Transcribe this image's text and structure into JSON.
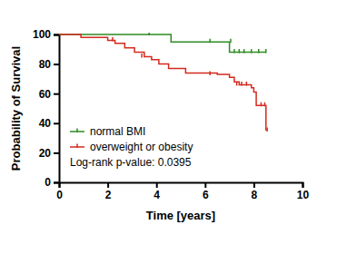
{
  "chart_data": {
    "type": "line",
    "x_label": "Time [years]",
    "y_label": "Probability of Survival",
    "annotation": "Log-rank p-value: 0.0395",
    "xlim": [
      0,
      10
    ],
    "xticks": [
      0,
      2,
      4,
      6,
      8,
      10
    ],
    "ylim": [
      0,
      100
    ],
    "yticks": [
      0,
      20,
      40,
      60,
      80,
      100
    ],
    "legend": "lower left",
    "line_style": "step",
    "series": [
      {
        "name": "normal BMI",
        "color": "#2e8b22",
        "marker": "censor-tick",
        "x": [
          0,
          4.6,
          7.0,
          8.5
        ],
        "values": [
          100,
          95,
          88,
          88
        ],
        "censor": {
          "x": [
            3.7,
            6.2,
            7.05,
            7.2,
            7.4,
            7.6,
            7.9,
            8.2,
            8.5
          ],
          "values": [
            100,
            95,
            95,
            88,
            88,
            88,
            88,
            88,
            88
          ]
        }
      },
      {
        "name": "overweight or obesity",
        "color": "#d42a1e",
        "marker": "censor-tick",
        "x": [
          0,
          0.9,
          2.0,
          2.3,
          2.7,
          3.1,
          3.5,
          3.8,
          4.1,
          4.5,
          5.2,
          6.5,
          7.0,
          7.2,
          7.4,
          7.9,
          8.0,
          8.1,
          8.5
        ],
        "values": [
          100,
          98,
          96,
          94,
          91,
          88,
          85,
          83,
          80,
          77,
          74,
          73,
          71,
          68,
          66,
          64,
          61,
          52,
          35
        ],
        "censor": {
          "x": [
            2.2,
            3.4,
            6.2,
            7.3,
            7.5,
            7.7,
            8.3,
            8.45,
            8.55
          ],
          "values": [
            96,
            85,
            73,
            66,
            66,
            66,
            52,
            52,
            35
          ]
        }
      }
    ]
  }
}
